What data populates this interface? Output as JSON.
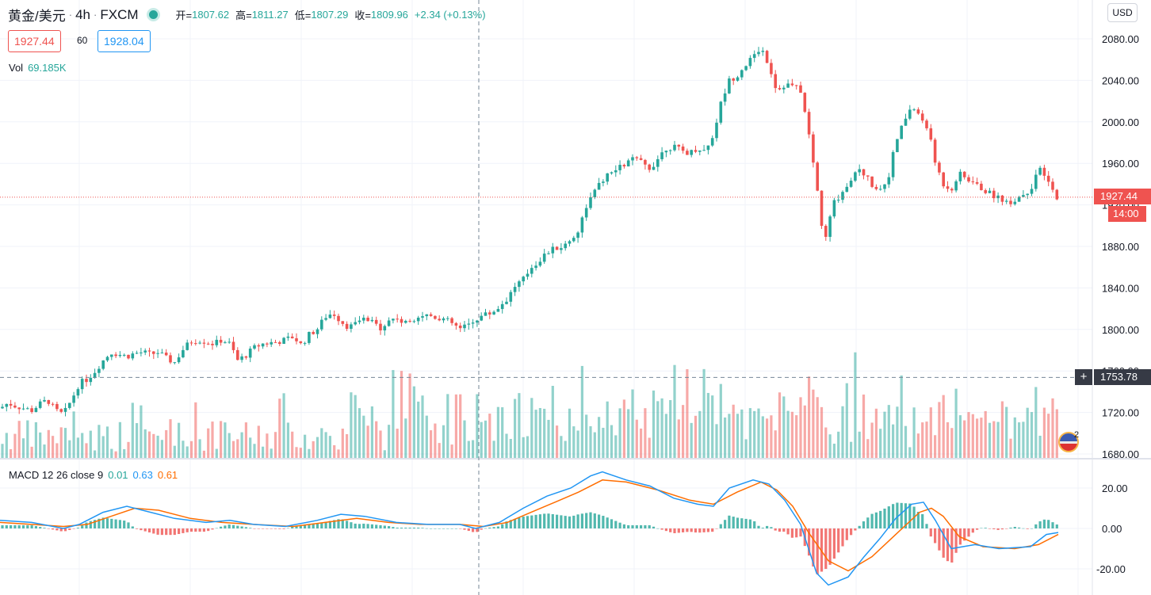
{
  "legend": {
    "symbol_title": "黄金/美元",
    "interval": "4h",
    "exchange": "FXCM",
    "open_label": "开=",
    "open": "1807.62",
    "high_label": "高=",
    "high": "1811.27",
    "low_label": "低=",
    "low": "1807.29",
    "close_label": "收=",
    "close": "1809.96",
    "change": "+2.34 (+0.13%)",
    "bid": "1927.44",
    "spread": "60",
    "ask": "1928.04",
    "vol_label": "Vol",
    "vol_value": "69.185K",
    "macd_label": "MACD 12 26 close 9",
    "macd_hist": "0.01",
    "macd_line": "0.63",
    "macd_signal": "0.61"
  },
  "currency_button": "USD",
  "axis": {
    "last_price": "1927.44",
    "last_time": "14:00",
    "crosshair_price": "1753.78"
  },
  "events": {
    "count": "2"
  },
  "colors": {
    "up": "#26a69a",
    "down": "#ef5350",
    "macd_line": "#2196f3",
    "signal_line": "#ff6d00",
    "grid": "#f0f3fa"
  },
  "chart_data": [
    {
      "type": "candlestick",
      "price_axis_ticks": [
        "2080.00",
        "2040.00",
        "2000.00",
        "1960.00",
        "1920.00",
        "1880.00",
        "1840.00",
        "1800.00",
        "1760.00",
        "1720.00",
        "1680.00"
      ],
      "ylim": [
        1680,
        2090
      ],
      "last_price": 1927.44,
      "crosshair_price": 1753.78,
      "close_path": [
        [
          0,
          1724
        ],
        [
          10,
          1729
        ],
        [
          20,
          1726
        ],
        [
          30,
          1724
        ],
        [
          40,
          1722
        ],
        [
          50,
          1728
        ],
        [
          60,
          1732
        ],
        [
          70,
          1722
        ],
        [
          80,
          1718
        ],
        [
          90,
          1732
        ],
        [
          100,
          1748
        ],
        [
          110,
          1752
        ],
        [
          120,
          1760
        ],
        [
          130,
          1770
        ],
        [
          140,
          1778
        ],
        [
          150,
          1776
        ],
        [
          160,
          1774
        ],
        [
          170,
          1777
        ],
        [
          180,
          1778
        ],
        [
          190,
          1776
        ],
        [
          200,
          1778
        ],
        [
          210,
          1772
        ],
        [
          220,
          1768
        ],
        [
          230,
          1780
        ],
        [
          240,
          1788
        ],
        [
          250,
          1790
        ],
        [
          260,
          1788
        ],
        [
          270,
          1786
        ],
        [
          280,
          1790
        ],
        [
          290,
          1786
        ],
        [
          300,
          1770
        ],
        [
          310,
          1775
        ],
        [
          320,
          1782
        ],
        [
          330,
          1786
        ],
        [
          340,
          1787
        ],
        [
          350,
          1788
        ],
        [
          360,
          1790
        ],
        [
          370,
          1793
        ],
        [
          380,
          1785
        ],
        [
          390,
          1795
        ],
        [
          400,
          1800
        ],
        [
          410,
          1812
        ],
        [
          420,
          1816
        ],
        [
          430,
          1808
        ],
        [
          440,
          1802
        ],
        [
          450,
          1806
        ],
        [
          460,
          1810
        ],
        [
          470,
          1806
        ],
        [
          480,
          1802
        ],
        [
          490,
          1808
        ],
        [
          500,
          1812
        ],
        [
          510,
          1805
        ],
        [
          520,
          1810
        ],
        [
          530,
          1814
        ],
        [
          540,
          1814
        ],
        [
          550,
          1812
        ],
        [
          560,
          1810
        ],
        [
          570,
          1806
        ],
        [
          580,
          1800
        ],
        [
          590,
          1804
        ],
        [
          600,
          1810
        ],
        [
          610,
          1814
        ],
        [
          620,
          1816
        ],
        [
          630,
          1822
        ],
        [
          640,
          1830
        ],
        [
          650,
          1842
        ],
        [
          660,
          1848
        ],
        [
          670,
          1860
        ],
        [
          680,
          1866
        ],
        [
          690,
          1874
        ],
        [
          700,
          1878
        ],
        [
          710,
          1880
        ],
        [
          720,
          1886
        ],
        [
          730,
          1896
        ],
        [
          740,
          1920
        ],
        [
          750,
          1932
        ],
        [
          760,
          1944
        ],
        [
          770,
          1950
        ],
        [
          780,
          1955
        ],
        [
          790,
          1960
        ],
        [
          800,
          1965
        ],
        [
          810,
          1960
        ],
        [
          820,
          1955
        ],
        [
          830,
          1965
        ],
        [
          840,
          1975
        ],
        [
          850,
          1976
        ],
        [
          860,
          1972
        ],
        [
          870,
          1970
        ],
        [
          880,
          1975
        ],
        [
          890,
          1972
        ],
        [
          900,
          1988
        ],
        [
          910,
          2020
        ],
        [
          920,
          2040
        ],
        [
          930,
          2045
        ],
        [
          940,
          2055
        ],
        [
          950,
          2062
        ],
        [
          960,
          2072
        ],
        [
          970,
          2055
        ],
        [
          980,
          2030
        ],
        [
          990,
          2036
        ],
        [
          1000,
          2035
        ],
        [
          1010,
          2030
        ],
        [
          1020,
          1990
        ],
        [
          1030,
          1940
        ],
        [
          1040,
          1880
        ],
        [
          1050,
          1920
        ],
        [
          1060,
          1930
        ],
        [
          1070,
          1940
        ],
        [
          1080,
          1955
        ],
        [
          1090,
          1950
        ],
        [
          1100,
          1940
        ],
        [
          1110,
          1935
        ],
        [
          1120,
          1945
        ],
        [
          1130,
          1980
        ],
        [
          1140,
          2000
        ],
        [
          1150,
          2015
        ],
        [
          1160,
          2005
        ],
        [
          1170,
          1995
        ],
        [
          1180,
          1960
        ],
        [
          1190,
          1940
        ],
        [
          1200,
          1935
        ],
        [
          1210,
          1950
        ],
        [
          1220,
          1945
        ],
        [
          1230,
          1940
        ],
        [
          1240,
          1935
        ],
        [
          1250,
          1930
        ],
        [
          1260,
          1928
        ],
        [
          1270,
          1922
        ],
        [
          1280,
          1925
        ],
        [
          1290,
          1930
        ],
        [
          1300,
          1935
        ],
        [
          1310,
          1955
        ],
        [
          1320,
          1945
        ],
        [
          1330,
          1930
        ],
        [
          1335,
          1927.44
        ]
      ]
    },
    {
      "type": "bar",
      "name": "Vol",
      "last_value": "69.185K"
    },
    {
      "type": "line",
      "name": "MACD 12 26 close 9",
      "y_axis_ticks": [
        "20.00",
        "0.00",
        "-20.00"
      ],
      "ylim": [
        -30,
        30
      ],
      "macd_path": [
        [
          0,
          4
        ],
        [
          40,
          3
        ],
        [
          80,
          0
        ],
        [
          100,
          2
        ],
        [
          130,
          8
        ],
        [
          160,
          11
        ],
        [
          190,
          8
        ],
        [
          220,
          5
        ],
        [
          260,
          3
        ],
        [
          290,
          4
        ],
        [
          320,
          2
        ],
        [
          360,
          1
        ],
        [
          400,
          4
        ],
        [
          430,
          7
        ],
        [
          460,
          6
        ],
        [
          500,
          3
        ],
        [
          540,
          2
        ],
        [
          580,
          2
        ],
        [
          600,
          0
        ],
        [
          630,
          3
        ],
        [
          660,
          10
        ],
        [
          690,
          16
        ],
        [
          720,
          20
        ],
        [
          745,
          26
        ],
        [
          760,
          28
        ],
        [
          790,
          24
        ],
        [
          820,
          21
        ],
        [
          850,
          15
        ],
        [
          880,
          12
        ],
        [
          900,
          11
        ],
        [
          920,
          20
        ],
        [
          950,
          24
        ],
        [
          970,
          22
        ],
        [
          990,
          14
        ],
        [
          1010,
          2
        ],
        [
          1030,
          -22
        ],
        [
          1045,
          -28
        ],
        [
          1070,
          -24
        ],
        [
          1090,
          -14
        ],
        [
          1110,
          -5
        ],
        [
          1130,
          5
        ],
        [
          1150,
          12
        ],
        [
          1165,
          13
        ],
        [
          1180,
          4
        ],
        [
          1200,
          -10
        ],
        [
          1230,
          -8
        ],
        [
          1260,
          -10
        ],
        [
          1300,
          -9
        ],
        [
          1320,
          -3
        ],
        [
          1335,
          -2
        ]
      ],
      "signal_path": [
        [
          0,
          3
        ],
        [
          40,
          2
        ],
        [
          80,
          1
        ],
        [
          110,
          2
        ],
        [
          140,
          6
        ],
        [
          170,
          10
        ],
        [
          200,
          9
        ],
        [
          240,
          5
        ],
        [
          280,
          3
        ],
        [
          320,
          2
        ],
        [
          370,
          1
        ],
        [
          410,
          3
        ],
        [
          450,
          5
        ],
        [
          490,
          3
        ],
        [
          530,
          2
        ],
        [
          580,
          2
        ],
        [
          610,
          1
        ],
        [
          640,
          3
        ],
        [
          670,
          8
        ],
        [
          700,
          13
        ],
        [
          730,
          18
        ],
        [
          760,
          24
        ],
        [
          790,
          23
        ],
        [
          830,
          19
        ],
        [
          870,
          14
        ],
        [
          900,
          12
        ],
        [
          930,
          18
        ],
        [
          960,
          23
        ],
        [
          980,
          19
        ],
        [
          1000,
          11
        ],
        [
          1020,
          -2
        ],
        [
          1045,
          -16
        ],
        [
          1070,
          -21
        ],
        [
          1100,
          -14
        ],
        [
          1130,
          -3
        ],
        [
          1160,
          8
        ],
        [
          1175,
          10
        ],
        [
          1190,
          6
        ],
        [
          1210,
          -4
        ],
        [
          1240,
          -9
        ],
        [
          1280,
          -10
        ],
        [
          1310,
          -8
        ],
        [
          1335,
          -3
        ]
      ]
    }
  ]
}
